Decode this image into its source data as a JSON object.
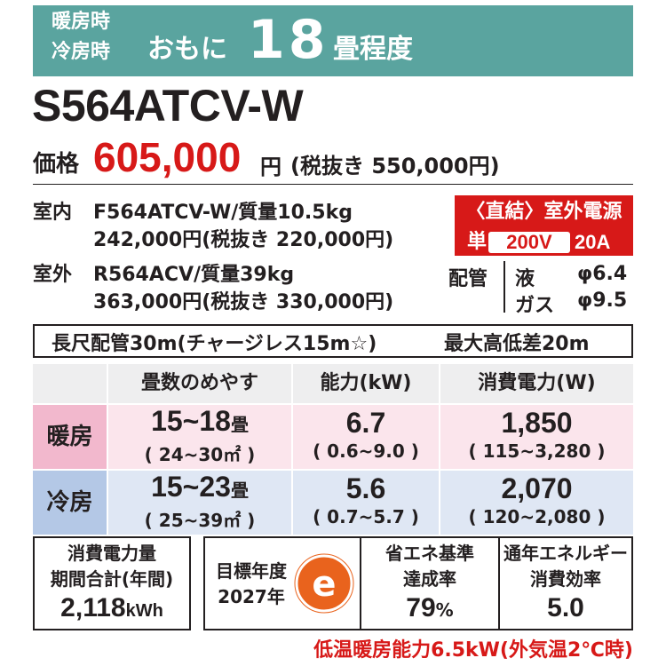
{
  "header": {
    "line1": "暖房時",
    "line2": "冷房時",
    "omoni": "おもに",
    "number": "18",
    "tatami": "畳程度"
  },
  "model": "S564ATCV-W",
  "price": {
    "label": "価格",
    "value": "605,000",
    "yen": "円",
    "tax_excl": "(税抜き 550,000円)"
  },
  "indoor": {
    "label": "室内",
    "spec": "F564ATCV-W/質量10.5kg",
    "price": "242,000円(税抜き 220,000円)"
  },
  "outdoor": {
    "label": "室外",
    "spec": "R564ACV/質量39kg",
    "price": "363,000円(税抜き 330,000円)"
  },
  "power": {
    "heading": "〈直結〉室外電源",
    "phase": "単",
    "voltage": "200V",
    "amp": "20A"
  },
  "piping": {
    "label": "配管",
    "liquid_label": "液",
    "liquid_value": "φ6.4",
    "gas_label": "ガス",
    "gas_value": "φ9.5"
  },
  "long_pipe": "長尺配管30m(チャージレス15m☆)",
  "max_height": "最大高低差20m",
  "table": {
    "headers": [
      "畳数のめやす",
      "能力(kW)",
      "消費電力(W)"
    ],
    "rows": [
      {
        "mode": "暖房",
        "tatami": "15~18",
        "tatami_unit": "畳",
        "area": "( 24~30㎡ )",
        "capacity": "6.7",
        "capacity_range": "( 0.6~9.0 )",
        "power": "1,850",
        "power_range": "( 115~3,280 )"
      },
      {
        "mode": "冷房",
        "tatami": "15~23",
        "tatami_unit": "畳",
        "area": "( 25~39㎡ )",
        "capacity": "5.6",
        "capacity_range": "( 0.7~5.7 )",
        "power": "2,070",
        "power_range": "( 120~2,080 )"
      }
    ]
  },
  "energy": {
    "line1": "消費電力量",
    "line2": "期間合計(年間)",
    "value": "2,118",
    "unit": "kWh"
  },
  "target_year": {
    "line1": "目標年度",
    "line2": "2027年",
    "mark": "e"
  },
  "achievement": {
    "line1": "省エネ基準",
    "line2": "達成率",
    "value": "79",
    "unit": "%"
  },
  "apf": {
    "line1": "通年エネルギー",
    "line2": "消費効率",
    "value": "5.0"
  },
  "footer": "低温暖房能力6.5kW(外気温2℃時)",
  "colors": {
    "band": "#5aa49f",
    "accent_red": "#d71918",
    "heat_row": "#fbe5ec",
    "cool_row": "#dfe7f4",
    "mark_orange": "#e9631d"
  }
}
